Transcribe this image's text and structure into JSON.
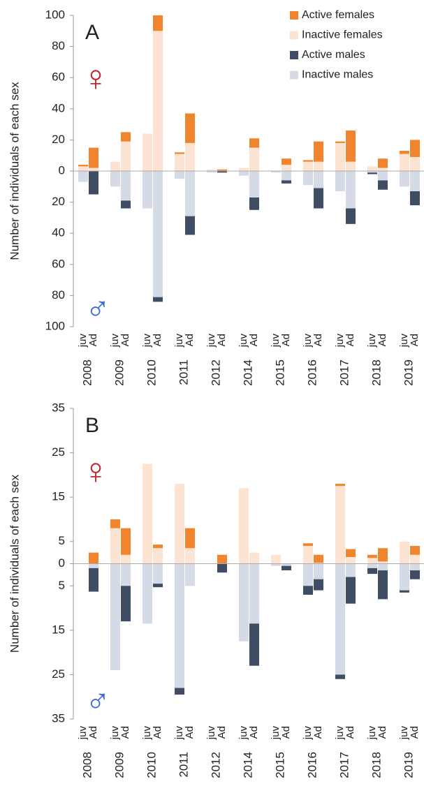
{
  "chart_data": [
    {
      "type": "bar",
      "stacked": true,
      "panel_label": "A",
      "ylabel": "Number of individuals of each sex",
      "female_symbol": "♀",
      "male_symbol": "♂",
      "groups": [
        "2008",
        "2009",
        "2010",
        "2011",
        "2012",
        "2014",
        "2015",
        "2016",
        "2017",
        "2018",
        "2019"
      ],
      "categories": [
        "juv",
        "Ad",
        "juv",
        "Ad",
        "juv",
        "Ad",
        "juv",
        "Ad",
        "juv",
        "Ad",
        "juv",
        "Ad",
        "juv",
        "Ad",
        "juv",
        "Ad",
        "juv",
        "Ad",
        "juv",
        "Ad",
        "juv",
        "Ad"
      ],
      "ylim": [
        -100,
        100
      ],
      "yticks": [
        100,
        80,
        60,
        40,
        20,
        0,
        {
          "value": -20,
          "label": "20"
        },
        {
          "value": -40,
          "label": "40"
        },
        {
          "value": -60,
          "label": "60"
        },
        {
          "value": -80,
          "label": "80"
        },
        {
          "value": -100,
          "label": "100"
        }
      ],
      "legend": "upper right",
      "series": [
        {
          "name": "Active females",
          "color": "#f0852d",
          "stack": "female",
          "values": [
            1,
            13,
            0,
            6,
            0,
            10,
            1,
            19,
            0,
            1,
            0,
            6,
            0,
            4,
            1,
            13,
            1,
            20,
            0,
            6,
            2,
            11
          ]
        },
        {
          "name": "Inactive females",
          "color": "#fde3d1",
          "stack": "female",
          "values": [
            3,
            2,
            6,
            19,
            24,
            90,
            11,
            18,
            1,
            0,
            2,
            15,
            0,
            4,
            6,
            6,
            18,
            6,
            3,
            2,
            11,
            9
          ]
        },
        {
          "name": "Active males",
          "color": "#3e4d63",
          "stack": "male",
          "values": [
            0,
            -15,
            0,
            -5,
            0,
            -3,
            0,
            -12,
            0,
            -1,
            0,
            -8,
            0,
            -2,
            0,
            -13,
            0,
            -10,
            -1,
            -6,
            0,
            -9
          ]
        },
        {
          "name": "Inactive males",
          "color": "#d4dbe6",
          "stack": "male",
          "values": [
            -7,
            0,
            -10,
            -19,
            -24,
            -81,
            -5,
            -29,
            -1,
            0,
            -3,
            -17,
            -1,
            -6,
            -9,
            -11,
            -13,
            -24,
            -1,
            -6,
            -10,
            -13
          ]
        }
      ]
    },
    {
      "type": "bar",
      "stacked": true,
      "panel_label": "B",
      "ylabel": "Number of individuals of each sex",
      "female_symbol": "♀",
      "male_symbol": "♂",
      "groups": [
        "2008",
        "2009",
        "2010",
        "2011",
        "2012",
        "2014",
        "2015",
        "2016",
        "2017",
        "2018",
        "2019"
      ],
      "categories": [
        "juv",
        "Ad",
        "juv",
        "Ad",
        "juv",
        "Ad",
        "juv",
        "Ad",
        "juv",
        "Ad",
        "juv",
        "Ad",
        "juv",
        "Ad",
        "juv",
        "Ad",
        "juv",
        "Ad",
        "juv",
        "Ad",
        "juv",
        "Ad"
      ],
      "ylim": [
        -35,
        35
      ],
      "yticks": [
        35,
        25,
        15,
        5,
        0,
        {
          "value": -5,
          "label": "5"
        },
        {
          "value": -15,
          "label": "15"
        },
        {
          "value": -25,
          "label": "25"
        },
        {
          "value": -35,
          "label": "35"
        }
      ],
      "series": [
        {
          "color": "#f0852d",
          "stack": "female",
          "values": [
            0,
            2.5,
            2,
            6,
            0,
            0.8,
            0,
            4.5,
            0,
            2,
            0,
            0,
            0,
            0,
            0.6,
            1.8,
            0.5,
            1.8,
            0.7,
            3,
            0,
            2
          ]
        },
        {
          "color": "#fde3d1",
          "stack": "female",
          "values": [
            0,
            0,
            8,
            2,
            22.5,
            3.5,
            18,
            3.5,
            0,
            0,
            17,
            2.5,
            2,
            0,
            4,
            0.2,
            17.5,
            1.5,
            1.3,
            0.5,
            5,
            2
          ]
        },
        {
          "color": "#3e4d63",
          "stack": "male",
          "values": [
            0,
            -5.3,
            0,
            -8,
            0,
            -0.8,
            -1.5,
            0,
            0,
            -2,
            0,
            -9.5,
            0,
            -1,
            -2,
            -2.5,
            -1,
            -6,
            -1.3,
            -6.5,
            -0.5,
            -2
          ]
        },
        {
          "color": "#d4dbe6",
          "stack": "male",
          "values": [
            0,
            -1,
            -24,
            -5,
            -13.5,
            -4.5,
            -28,
            -5,
            0,
            0,
            -17.5,
            -13.5,
            -0.5,
            -0.5,
            -5,
            -3.5,
            -25,
            -3,
            -1,
            -1.5,
            -6,
            -1.5
          ]
        }
      ]
    }
  ]
}
